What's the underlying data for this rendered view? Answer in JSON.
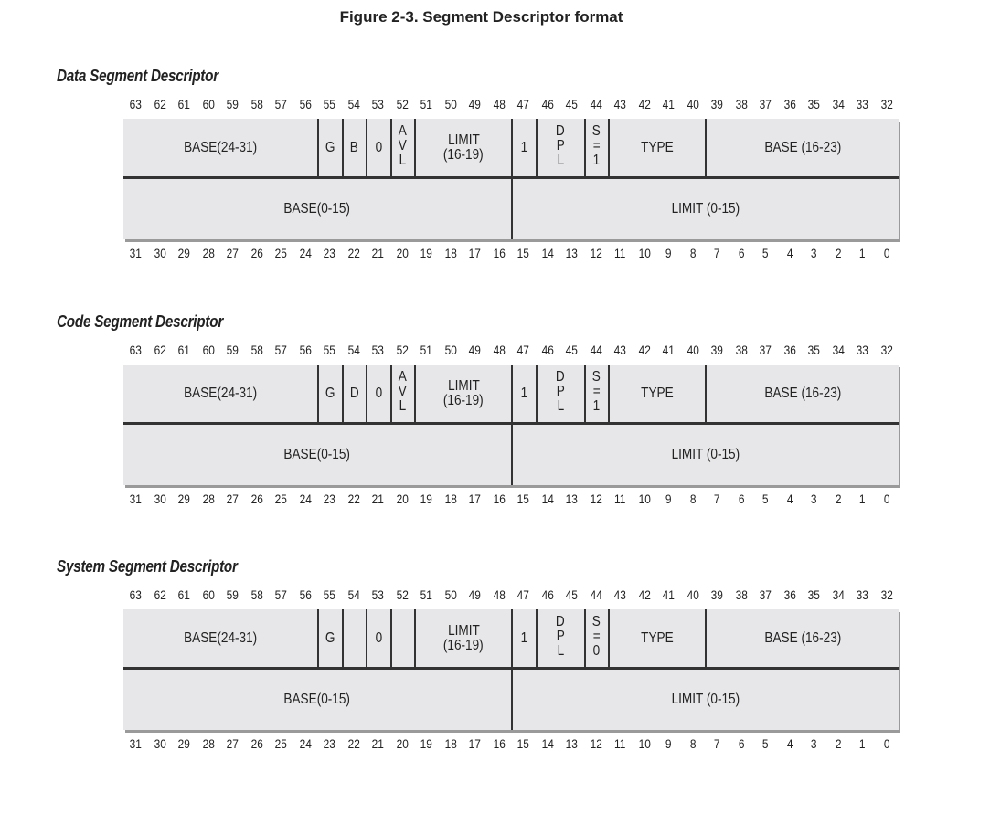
{
  "figure_title": "Figure 2-3. Segment Descriptor format",
  "top_bits": [
    "63",
    "62",
    "61",
    "60",
    "59",
    "58",
    "57",
    "56",
    "55",
    "54",
    "53",
    "52",
    "51",
    "50",
    "49",
    "48",
    "47",
    "46",
    "45",
    "44",
    "43",
    "42",
    "41",
    "40",
    "39",
    "38",
    "37",
    "36",
    "35",
    "34",
    "33",
    "32"
  ],
  "bottom_bits": [
    "31",
    "30",
    "29",
    "28",
    "27",
    "26",
    "25",
    "24",
    "23",
    "22",
    "21",
    "20",
    "19",
    "18",
    "17",
    "16",
    "15",
    "14",
    "13",
    "12",
    "11",
    "10",
    "9",
    "8",
    "7",
    "6",
    "5",
    "4",
    "3",
    "2",
    "1",
    "0"
  ],
  "descriptors": [
    {
      "heading": "Data Segment Descriptor",
      "top_fields": [
        {
          "bits": [
            63,
            56
          ],
          "lines": [
            "BASE(24-31)"
          ]
        },
        {
          "bits": [
            55,
            55
          ],
          "lines": [
            "G"
          ]
        },
        {
          "bits": [
            54,
            54
          ],
          "lines": [
            "B"
          ]
        },
        {
          "bits": [
            53,
            53
          ],
          "lines": [
            "0"
          ]
        },
        {
          "bits": [
            52,
            52
          ],
          "lines": [
            "A",
            "V",
            "L"
          ]
        },
        {
          "bits": [
            51,
            48
          ],
          "lines": [
            "LIMIT",
            "(16-19)"
          ]
        },
        {
          "bits": [
            47,
            47
          ],
          "lines": [
            "1"
          ]
        },
        {
          "bits": [
            46,
            45
          ],
          "lines": [
            "D",
            "P",
            "L"
          ]
        },
        {
          "bits": [
            44,
            44
          ],
          "lines": [
            "S",
            "=",
            "1"
          ]
        },
        {
          "bits": [
            43,
            40
          ],
          "lines": [
            "TYPE"
          ]
        },
        {
          "bits": [
            39,
            32
          ],
          "lines": [
            "BASE (16-23)"
          ]
        }
      ],
      "bottom_fields": [
        {
          "bits": [
            31,
            16
          ],
          "lines": [
            "BASE(0-15)"
          ]
        },
        {
          "bits": [
            15,
            0
          ],
          "lines": [
            "LIMIT (0-15)"
          ]
        }
      ]
    },
    {
      "heading": "Code Segment Descriptor",
      "top_fields": [
        {
          "bits": [
            63,
            56
          ],
          "lines": [
            "BASE(24-31)"
          ]
        },
        {
          "bits": [
            55,
            55
          ],
          "lines": [
            "G"
          ]
        },
        {
          "bits": [
            54,
            54
          ],
          "lines": [
            "D"
          ]
        },
        {
          "bits": [
            53,
            53
          ],
          "lines": [
            "0"
          ]
        },
        {
          "bits": [
            52,
            52
          ],
          "lines": [
            "A",
            "V",
            "L"
          ]
        },
        {
          "bits": [
            51,
            48
          ],
          "lines": [
            "LIMIT",
            "(16-19)"
          ]
        },
        {
          "bits": [
            47,
            47
          ],
          "lines": [
            "1"
          ]
        },
        {
          "bits": [
            46,
            45
          ],
          "lines": [
            "D",
            "P",
            "L"
          ]
        },
        {
          "bits": [
            44,
            44
          ],
          "lines": [
            "S",
            "=",
            "1"
          ]
        },
        {
          "bits": [
            43,
            40
          ],
          "lines": [
            "TYPE"
          ]
        },
        {
          "bits": [
            39,
            32
          ],
          "lines": [
            "BASE (16-23)"
          ]
        }
      ],
      "bottom_fields": [
        {
          "bits": [
            31,
            16
          ],
          "lines": [
            "BASE(0-15)"
          ]
        },
        {
          "bits": [
            15,
            0
          ],
          "lines": [
            "LIMIT (0-15)"
          ]
        }
      ]
    },
    {
      "heading": "System Segment Descriptor",
      "top_fields": [
        {
          "bits": [
            63,
            56
          ],
          "lines": [
            "BASE(24-31)"
          ]
        },
        {
          "bits": [
            55,
            55
          ],
          "lines": [
            "G"
          ]
        },
        {
          "bits": [
            54,
            54
          ],
          "lines": []
        },
        {
          "bits": [
            53,
            53
          ],
          "lines": [
            "0"
          ]
        },
        {
          "bits": [
            52,
            52
          ],
          "lines": []
        },
        {
          "bits": [
            51,
            48
          ],
          "lines": [
            "LIMIT",
            "(16-19)"
          ]
        },
        {
          "bits": [
            47,
            47
          ],
          "lines": [
            "1"
          ]
        },
        {
          "bits": [
            46,
            45
          ],
          "lines": [
            "D",
            "P",
            "L"
          ]
        },
        {
          "bits": [
            44,
            44
          ],
          "lines": [
            "S",
            "=",
            "0"
          ]
        },
        {
          "bits": [
            43,
            40
          ],
          "lines": [
            "TYPE"
          ]
        },
        {
          "bits": [
            39,
            32
          ],
          "lines": [
            "BASE (16-23)"
          ]
        }
      ],
      "bottom_fields": [
        {
          "bits": [
            31,
            16
          ],
          "lines": [
            "BASE(0-15)"
          ]
        },
        {
          "bits": [
            15,
            0
          ],
          "lines": [
            "LIMIT (0-15)"
          ]
        }
      ]
    }
  ]
}
